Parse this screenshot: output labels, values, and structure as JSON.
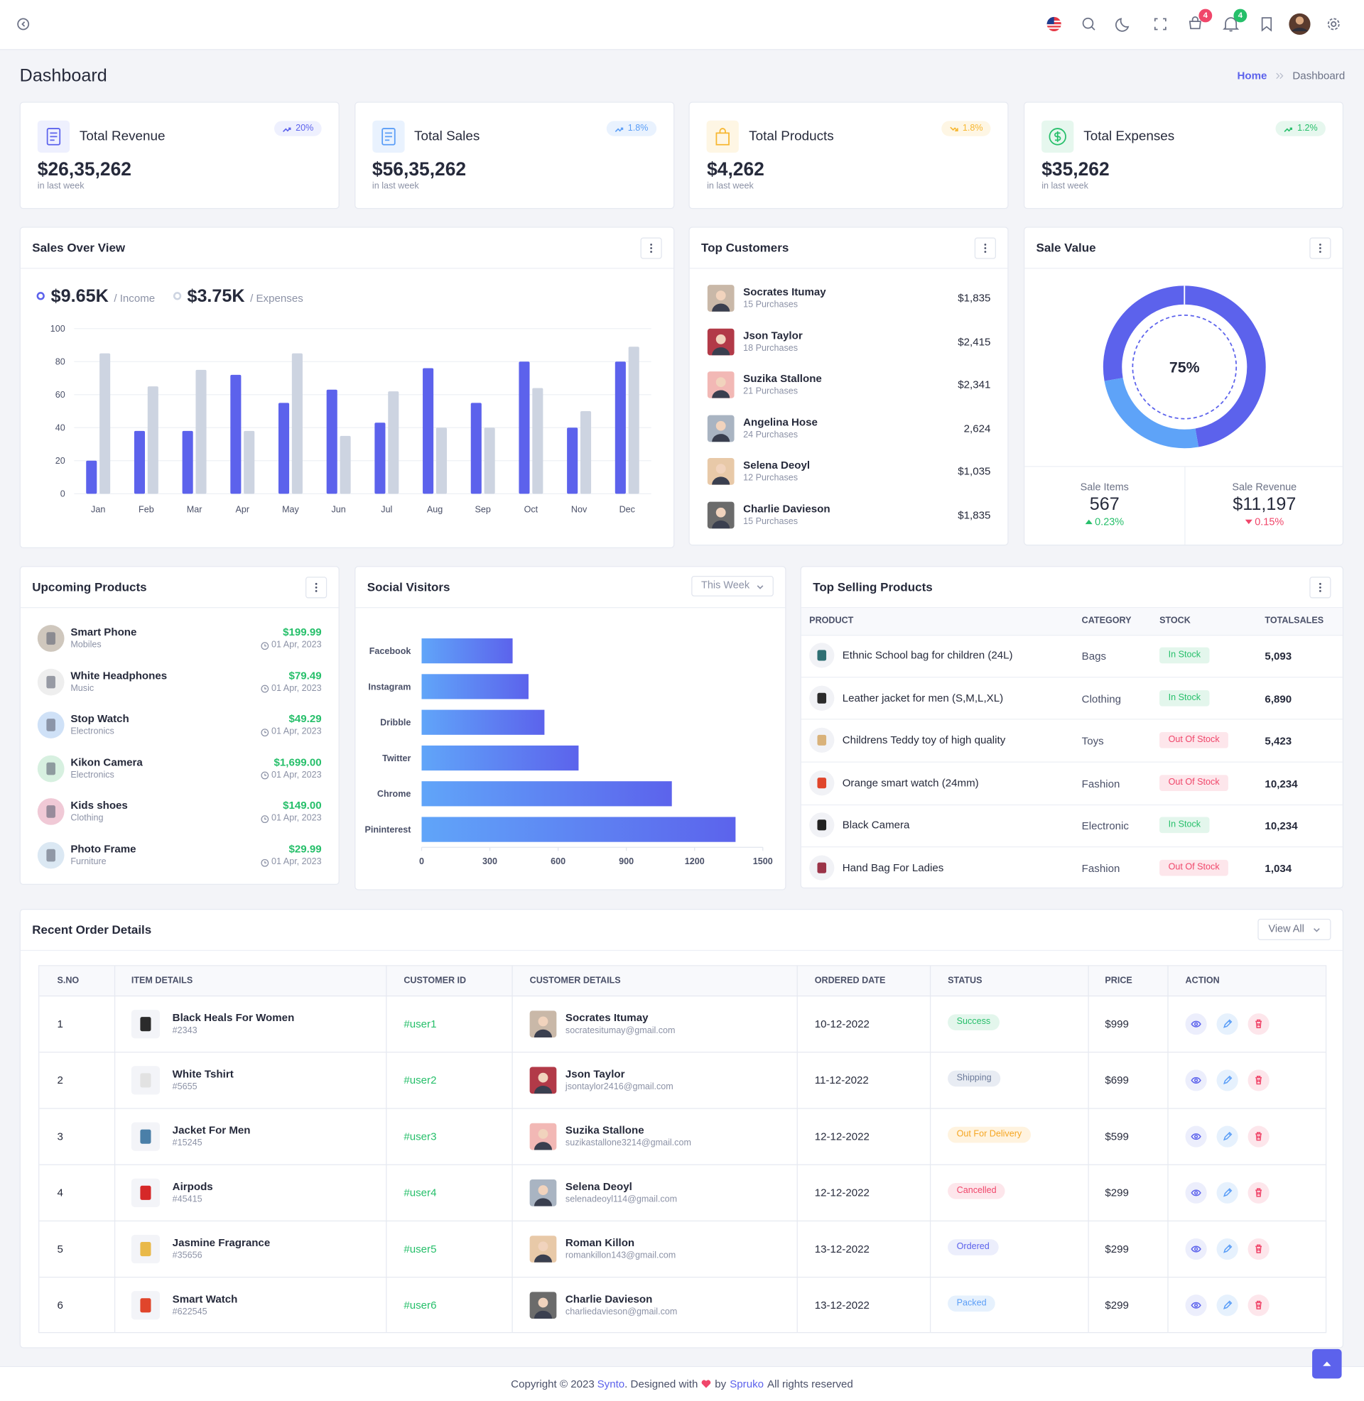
{
  "header": {
    "cart_badge": "4",
    "notification_badge": "4"
  },
  "page": {
    "title": "Dashboard",
    "breadcrumb": [
      "Home",
      "Dashboard"
    ]
  },
  "stats": [
    {
      "title": "Total Revenue",
      "change": "20%",
      "value": "$26,35,262",
      "note": "in last week"
    },
    {
      "title": "Total Sales",
      "change": "1.8%",
      "value": "$56,35,262",
      "note": "in last week"
    },
    {
      "title": "Total Products",
      "change": "1.8%",
      "value": "$4,262",
      "note": "in last week"
    },
    {
      "title": "Total Expenses",
      "change": "1.2%",
      "value": "$35,262",
      "note": "in last week"
    }
  ],
  "chart_data": [
    {
      "type": "bar",
      "title": "Sales Over View",
      "categories": [
        "Jan",
        "Feb",
        "Mar",
        "Apr",
        "May",
        "Jun",
        "Jul",
        "Aug",
        "Sep",
        "Oct",
        "Nov",
        "Dec"
      ],
      "series": [
        {
          "name": "/ Income",
          "total": "$9.65K",
          "color": "#5c62ec",
          "values": [
            20,
            38,
            38,
            72,
            55,
            63,
            43,
            76,
            55,
            80,
            40,
            80
          ]
        },
        {
          "name": "/ Expenses",
          "total": "$3.75K",
          "color": "#cdd4e1",
          "values": [
            85,
            65,
            75,
            38,
            85,
            35,
            62,
            40,
            40,
            64,
            50,
            89
          ]
        }
      ],
      "ylim": [
        0,
        100
      ],
      "yticks": [
        0,
        20,
        40,
        60,
        80,
        100
      ],
      "grid": true
    },
    {
      "type": "pie",
      "title": "Sale Value",
      "values": [
        75,
        25
      ],
      "value_labels": [
        "75%",
        null
      ],
      "colors": [
        "#5c62ec",
        "#5ea3f8"
      ]
    },
    {
      "type": "bar",
      "title": "Social Visitors",
      "filter": "This Week",
      "orientation": "horizontal",
      "categories": [
        "Facebook",
        "Instagram",
        "Dribble",
        "Twitter",
        "Chrome",
        "Pininterest"
      ],
      "values": [
        400,
        470,
        540,
        690,
        1100,
        1380
      ],
      "gradient": [
        "#60a5f9",
        "#5c63ec"
      ],
      "xlim": [
        0,
        1500
      ],
      "xticks": [
        0,
        300,
        600,
        900,
        1200,
        1500
      ]
    }
  ],
  "top_customers": {
    "title": "Top Customers",
    "items": [
      {
        "name": "Socrates Itumay",
        "purchases": "15 Purchases",
        "amount": "$1,835"
      },
      {
        "name": "Json Taylor",
        "purchases": "18 Purchases",
        "amount": "$2,415"
      },
      {
        "name": "Suzika Stallone",
        "purchases": "21 Purchases",
        "amount": "$2,341"
      },
      {
        "name": "Angelina Hose",
        "purchases": "24 Purchases",
        "amount": "2,624"
      },
      {
        "name": "Selena Deoyl",
        "purchases": "12 Purchases",
        "amount": "$1,035"
      },
      {
        "name": "Charlie Davieson",
        "purchases": "15 Purchases",
        "amount": "$1,835"
      }
    ]
  },
  "sale_value_stats": [
    {
      "label": "Sale Items",
      "value": "567",
      "change": "0.23%"
    },
    {
      "label": "Sale Revenue",
      "value": "$11,197",
      "change": "0.15%"
    }
  ],
  "upcoming_products": {
    "title": "Upcoming Products",
    "items": [
      {
        "name": "Smart Phone",
        "category": "Mobiles",
        "price": "$199.99",
        "date": "01 Apr, 2023"
      },
      {
        "name": "White Headphones",
        "category": "Music",
        "price": "$79.49",
        "date": "01 Apr, 2023"
      },
      {
        "name": "Stop Watch",
        "category": "Electronics",
        "price": "$49.29",
        "date": "01 Apr, 2023"
      },
      {
        "name": "Kikon Camera",
        "category": "Electronics",
        "price": "$1,699.00",
        "date": "01 Apr, 2023"
      },
      {
        "name": "Kids shoes",
        "category": "Clothing",
        "price": "$149.00",
        "date": "01 Apr, 2023"
      },
      {
        "name": "Photo Frame",
        "category": "Furniture",
        "price": "$29.99",
        "date": "01 Apr, 2023"
      }
    ]
  },
  "top_selling": {
    "title": "Top Selling Products",
    "columns": [
      "PRODUCT",
      "CATEGORY",
      "STOCK",
      "TOTALSALES"
    ],
    "rows": [
      {
        "product": "Ethnic School bag for children (24L)",
        "category": "Bags",
        "stock": "In Stock",
        "sales": "5,093"
      },
      {
        "product": "Leather jacket for men (S,M,L,XL)",
        "category": "Clothing",
        "stock": "In Stock",
        "sales": "6,890"
      },
      {
        "product": "Childrens Teddy toy of high quality",
        "category": "Toys",
        "stock": "Out Of Stock",
        "sales": "5,423"
      },
      {
        "product": "Orange smart watch (24mm)",
        "category": "Fashion",
        "stock": "Out Of Stock",
        "sales": "10,234"
      },
      {
        "product": "Black Camera",
        "category": "Electronic",
        "stock": "In Stock",
        "sales": "10,234"
      },
      {
        "product": "Hand Bag For Ladies",
        "category": "Fashion",
        "stock": "Out Of Stock",
        "sales": "1,034"
      }
    ]
  },
  "recent_orders": {
    "title": "Recent Order Details",
    "button": "View All",
    "columns": [
      "S.NO",
      "ITEM DETAILS",
      "CUSTOMER ID",
      "CUSTOMER DETAILS",
      "ORDERED DATE",
      "STATUS",
      "PRICE",
      "ACTION"
    ],
    "rows": [
      {
        "sno": "1",
        "item": "Black Heals For Women",
        "item_id": "#2343",
        "customer_id": "#user1",
        "customer": "Socrates Itumay",
        "email": "socratesitumay@gmail.com",
        "date": "10-12-2022",
        "status": "Success",
        "price": "$999"
      },
      {
        "sno": "2",
        "item": "White Tshirt",
        "item_id": "#5655",
        "customer_id": "#user2",
        "customer": "Json Taylor",
        "email": "jsontaylor2416@gmail.com",
        "date": "11-12-2022",
        "status": "Shipping",
        "price": "$699"
      },
      {
        "sno": "3",
        "item": "Jacket For Men",
        "item_id": "#15245",
        "customer_id": "#user3",
        "customer": "Suzika Stallone",
        "email": "suzikastallone3214@gmail.com",
        "date": "12-12-2022",
        "status": "Out For Delivery",
        "price": "$599"
      },
      {
        "sno": "4",
        "item": "Airpods",
        "item_id": "#45415",
        "customer_id": "#user4",
        "customer": "Selena Deoyl",
        "email": "selenadeoyl114@gmail.com",
        "date": "12-12-2022",
        "status": "Cancelled",
        "price": "$299"
      },
      {
        "sno": "5",
        "item": "Jasmine Fragrance",
        "item_id": "#35656",
        "customer_id": "#user5",
        "customer": "Roman Killon",
        "email": "romankillon143@gmail.com",
        "date": "13-12-2022",
        "status": "Ordered",
        "price": "$299"
      },
      {
        "sno": "6",
        "item": "Smart Watch",
        "item_id": "#622545",
        "customer_id": "#user6",
        "customer": "Charlie Davieson",
        "email": "charliedavieson@gmail.com",
        "date": "13-12-2022",
        "status": "Packed",
        "price": "$299"
      }
    ]
  },
  "footer": {
    "copyright": "Copyright © 2023",
    "brand": "Synto",
    "designed": ". Designed with",
    "by": "by",
    "author": "Spruko",
    "rights": "All rights reserved"
  }
}
